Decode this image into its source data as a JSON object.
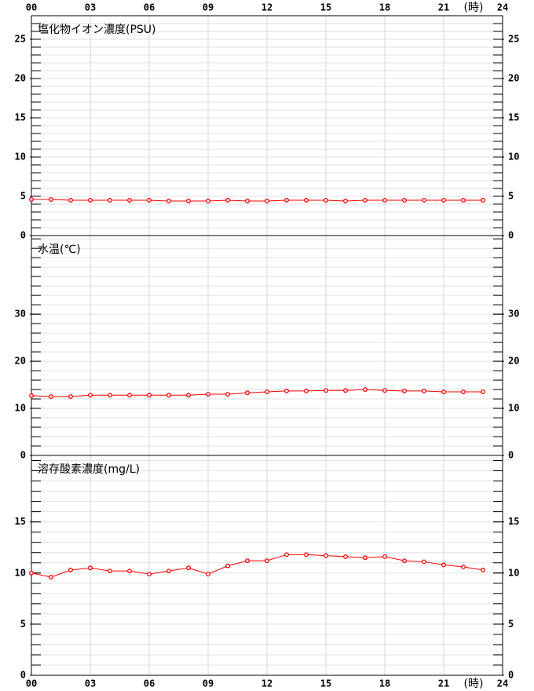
{
  "chart_data": [
    {
      "type": "line",
      "title": "塩化物イオン濃度(PSU)",
      "xlabel": "(時)",
      "x": [
        0,
        1,
        2,
        3,
        4,
        5,
        6,
        7,
        8,
        9,
        10,
        11,
        12,
        13,
        14,
        15,
        16,
        17,
        18,
        19,
        20,
        21,
        22,
        23
      ],
      "xlim": [
        0,
        24
      ],
      "xticks": [
        {
          "value": 0,
          "label": "00"
        },
        {
          "value": 3,
          "label": "03"
        },
        {
          "value": 6,
          "label": "06"
        },
        {
          "value": 9,
          "label": "09"
        },
        12,
        15,
        18,
        21,
        24
      ],
      "ylim": [
        0,
        28
      ],
      "yticks": [
        0,
        5,
        10,
        15,
        20,
        25
      ],
      "minor_grid_step": 1,
      "series": [
        {
          "color": "#ff0000",
          "values": [
            4.6,
            4.6,
            4.5,
            4.5,
            4.5,
            4.5,
            4.5,
            4.4,
            4.4,
            4.4,
            4.5,
            4.4,
            4.4,
            4.5,
            4.5,
            4.5,
            4.4,
            4.5,
            4.5,
            4.5,
            4.5,
            4.5,
            4.5,
            4.5
          ]
        }
      ]
    },
    {
      "type": "line",
      "title": "水温(℃)",
      "x": [
        0,
        1,
        2,
        3,
        4,
        5,
        6,
        7,
        8,
        9,
        10,
        11,
        12,
        13,
        14,
        15,
        16,
        17,
        18,
        19,
        20,
        21,
        22,
        23
      ],
      "xlim": [
        0,
        24
      ],
      "xticks": [
        {
          "value": 0,
          "label": "00"
        },
        {
          "value": 3,
          "label": "03"
        },
        {
          "value": 6,
          "label": "06"
        },
        {
          "value": 9,
          "label": "09"
        },
        12,
        15,
        18,
        21,
        24
      ],
      "ylim": [
        0,
        46.7
      ],
      "yticks": [
        0,
        10,
        20,
        30
      ],
      "minor_grid_step": 2,
      "series": [
        {
          "color": "#ff0000",
          "values": [
            12.7,
            12.5,
            12.5,
            12.8,
            12.8,
            12.8,
            12.8,
            12.8,
            12.8,
            13.0,
            13.0,
            13.3,
            13.5,
            13.7,
            13.7,
            13.8,
            13.8,
            14.0,
            13.8,
            13.7,
            13.7,
            13.5,
            13.5,
            13.5
          ]
        }
      ]
    },
    {
      "type": "line",
      "title": "溶存酸素濃度(mg/L)",
      "xlabel": "(時)",
      "x": [
        0,
        1,
        2,
        3,
        4,
        5,
        6,
        7,
        8,
        9,
        10,
        11,
        12,
        13,
        14,
        15,
        16,
        17,
        18,
        19,
        20,
        21,
        22,
        23
      ],
      "xlim": [
        0,
        24
      ],
      "xticks": [
        {
          "value": 0,
          "label": "00"
        },
        {
          "value": 3,
          "label": "03"
        },
        {
          "value": 6,
          "label": "06"
        },
        {
          "value": 9,
          "label": "09"
        },
        12,
        15,
        18,
        21,
        24
      ],
      "ylim": [
        0,
        21.5
      ],
      "yticks": [
        0,
        5,
        10,
        15
      ],
      "minor_grid_step": 1,
      "series": [
        {
          "color": "#ff0000",
          "values": [
            10.0,
            9.6,
            10.3,
            10.5,
            10.2,
            10.2,
            9.9,
            10.2,
            10.5,
            9.9,
            10.7,
            11.2,
            11.2,
            11.8,
            11.8,
            11.7,
            11.6,
            11.5,
            11.6,
            11.2,
            11.1,
            10.8,
            10.6,
            10.3
          ]
        }
      ]
    }
  ]
}
